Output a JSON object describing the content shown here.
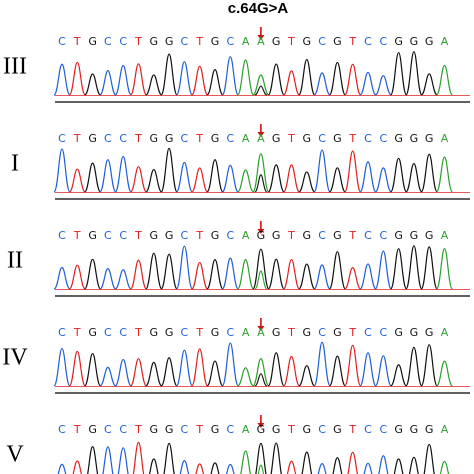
{
  "title": "c.64G>A",
  "base_colors": {
    "A": "#2ca02c",
    "C": "#1f5fd6",
    "G": "#111111",
    "T": "#e02020"
  },
  "panels": [
    {
      "label": "III",
      "sequence": [
        "C",
        "T",
        "G",
        "C",
        "C",
        "T",
        "G",
        "G",
        "C",
        "T",
        "G",
        "C",
        "A",
        "A",
        "G",
        "T",
        "G",
        "C",
        "G",
        "T",
        "C",
        "C",
        "G",
        "G",
        "G",
        "A"
      ]
    },
    {
      "label": "I",
      "sequence": [
        "C",
        "T",
        "G",
        "C",
        "C",
        "T",
        "G",
        "G",
        "C",
        "T",
        "G",
        "C",
        "A",
        "A",
        "G",
        "T",
        "G",
        "C",
        "G",
        "T",
        "C",
        "C",
        "G",
        "G",
        "G",
        "A"
      ]
    },
    {
      "label": "II",
      "sequence": [
        "C",
        "T",
        "G",
        "C",
        "C",
        "T",
        "G",
        "G",
        "C",
        "T",
        "G",
        "C",
        "A",
        "G",
        "G",
        "T",
        "G",
        "C",
        "G",
        "T",
        "C",
        "C",
        "G",
        "G",
        "G",
        "A"
      ]
    },
    {
      "label": "IV",
      "sequence": [
        "C",
        "T",
        "G",
        "C",
        "C",
        "T",
        "G",
        "G",
        "C",
        "T",
        "G",
        "C",
        "A",
        "A",
        "G",
        "T",
        "G",
        "C",
        "G",
        "T",
        "C",
        "C",
        "G",
        "G",
        "G",
        "A"
      ]
    },
    {
      "label": "V",
      "sequence": [
        "C",
        "T",
        "G",
        "C",
        "C",
        "T",
        "G",
        "G",
        "C",
        "T",
        "G",
        "C",
        "A",
        "G",
        "G",
        "T",
        "G",
        "C",
        "G",
        "T",
        "C",
        "C",
        "G",
        "G",
        "G",
        "A"
      ]
    }
  ]
}
